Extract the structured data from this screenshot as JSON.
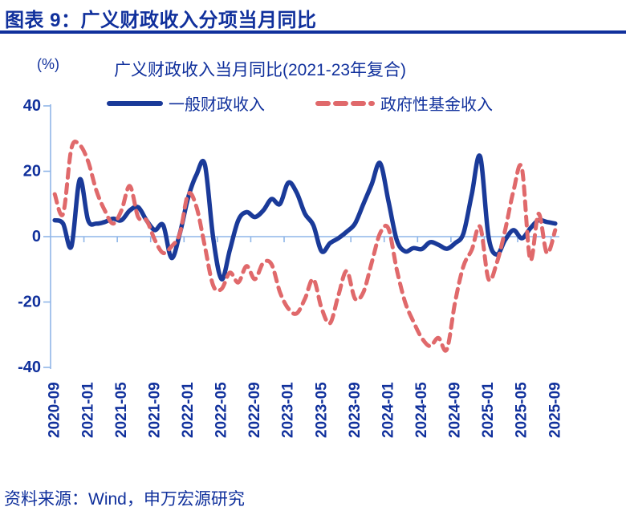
{
  "header": {
    "title": "图表 9：广义财政收入分项当月同比"
  },
  "footer": {
    "source": "资料来源：Wind，申万宏源研究"
  },
  "colors": {
    "navy_text": "#10309C",
    "navy_line": "#1A3A99",
    "red_line": "#E0696B",
    "axis_blue": "#8FB6E8"
  },
  "chart_data": {
    "type": "line",
    "title": "广义财政收入当月同比(2021-23年复合)",
    "unit_label": "(%)",
    "ylim": [
      -40,
      40
    ],
    "yticks": [
      40,
      20,
      0,
      -20,
      -40
    ],
    "grid": false,
    "legend_position": "top",
    "x_major_tick_every": 4,
    "x": [
      "2020-09",
      "2020-10",
      "2020-11",
      "2020-12",
      "2021-01",
      "2021-02",
      "2021-03",
      "2021-04",
      "2021-05",
      "2021-06",
      "2021-07",
      "2021-08",
      "2021-09",
      "2021-10",
      "2021-11",
      "2021-12",
      "2022-01",
      "2022-02",
      "2022-03",
      "2022-04",
      "2022-05",
      "2022-06",
      "2022-07",
      "2022-08",
      "2022-09",
      "2022-10",
      "2022-11",
      "2022-12",
      "2023-01",
      "2023-02",
      "2023-03",
      "2023-04",
      "2023-05",
      "2023-06",
      "2023-07",
      "2023-08",
      "2023-09",
      "2023-10",
      "2023-11",
      "2023-12",
      "2024-01",
      "2024-02",
      "2024-03",
      "2024-04",
      "2024-05",
      "2024-06",
      "2024-07",
      "2024-08",
      "2024-09",
      "2024-10",
      "2024-11",
      "2024-12",
      "2025-01",
      "2025-02",
      "2025-03",
      "2025-04",
      "2025-05",
      "2025-06",
      "2025-07",
      "2025-08",
      "2025-09"
    ],
    "series": [
      {
        "name": "一般财政收入",
        "style": "solid",
        "color": "#1A3A99",
        "values": [
          5,
          4,
          -3,
          17.5,
          5,
          4,
          4.5,
          5.5,
          5,
          8,
          9,
          5,
          2,
          3.5,
          -6.5,
          1,
          12,
          19,
          22,
          -0.5,
          -13,
          -4,
          5,
          7.5,
          6,
          8,
          11.5,
          10,
          16.5,
          13.5,
          7,
          3.5,
          -4.5,
          -2,
          -0.5,
          1.5,
          4,
          10,
          16,
          22.5,
          11,
          -1,
          -4.5,
          -3.5,
          -3.8,
          -1.7,
          -2.5,
          -3.7,
          -2,
          1,
          13,
          24.5,
          0,
          -5.5,
          -1,
          2,
          -0.5,
          2.5,
          5,
          4.5,
          4
        ]
      },
      {
        "name": "政府性基金收入",
        "style": "dashed",
        "color": "#E0696B",
        "values": [
          13,
          7,
          27,
          28,
          23,
          14,
          8,
          4,
          8,
          15.5,
          6,
          5,
          -1,
          -5,
          -3,
          1,
          13,
          9,
          -3,
          -15,
          -16,
          -11,
          -14,
          -9,
          -13,
          -8,
          -8.5,
          -17,
          -22,
          -23.5,
          -19,
          -13,
          -22,
          -26.5,
          -18,
          -10.5,
          -19,
          -17,
          -8,
          1,
          2.5,
          -10,
          -20,
          -26,
          -31,
          -33.5,
          -31,
          -34.5,
          -20,
          -9,
          -4,
          3,
          -13,
          -8,
          2,
          14,
          21,
          -7,
          7,
          -5,
          2
        ]
      }
    ]
  }
}
